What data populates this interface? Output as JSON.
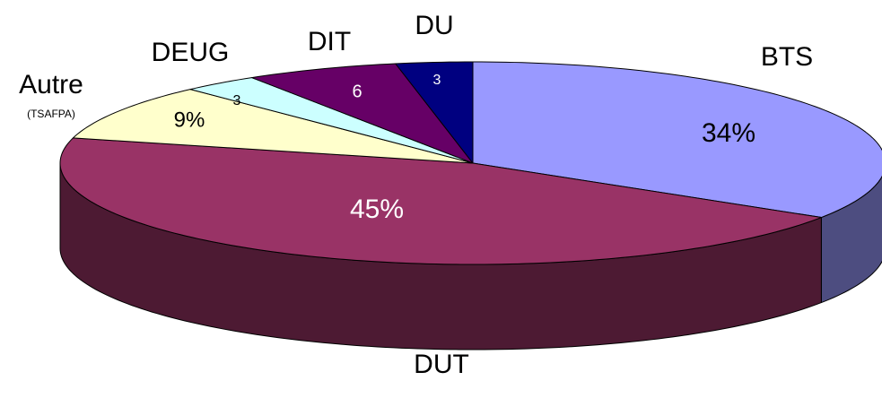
{
  "chart_data": {
    "type": "pie3d",
    "categories": [
      "BTS",
      "DUT",
      "Autre",
      "DEUG",
      "DIT",
      "DU"
    ],
    "values": [
      34,
      45,
      9,
      3,
      6,
      3
    ],
    "value_labels": [
      "34%",
      "45%",
      "9%",
      "3",
      "6",
      "3"
    ],
    "colors": [
      "#9999ff",
      "#993366",
      "#ffffcc",
      "#ccffff",
      "#660066",
      "#000080"
    ],
    "annotation": "(TSAFPA)"
  }
}
